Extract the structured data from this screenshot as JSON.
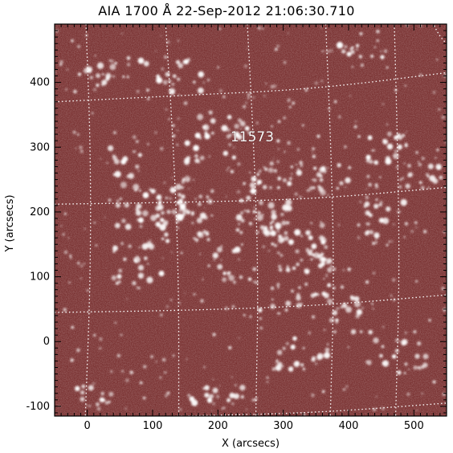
{
  "title": "AIA 1700 Å 22-Sep-2012 21:06:30.710",
  "region_label": "11573",
  "xaxis": {
    "label": "X (arcsecs)",
    "range": [
      -50,
      550
    ],
    "ticks": [
      "0",
      "100",
      "200",
      "300",
      "400",
      "500"
    ],
    "tick_values": [
      0,
      100,
      200,
      300,
      400,
      500
    ]
  },
  "yaxis": {
    "label": "Y (arcsecs)",
    "range": [
      -115,
      490
    ],
    "ticks": [
      "-100",
      "0",
      "100",
      "200",
      "300",
      "400"
    ],
    "tick_values": [
      -100,
      0,
      100,
      200,
      300,
      400
    ]
  },
  "colors": {
    "background": "#7a3333",
    "bright": "#ffffff",
    "grid": "#ffffff"
  },
  "grid": "heliographic dotted grid"
}
